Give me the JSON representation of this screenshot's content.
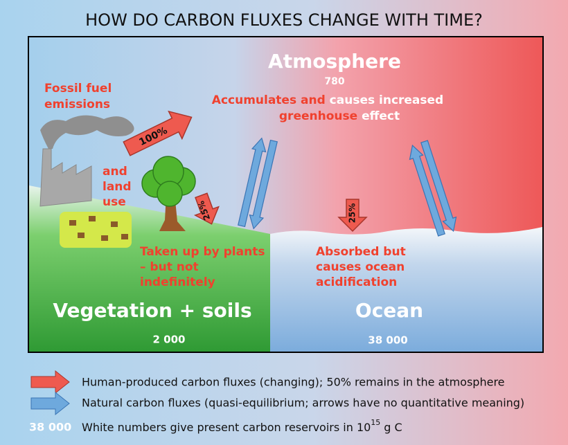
{
  "title": "HOW DO CARBON FLUXES CHANGE WITH TIME?",
  "atmosphere": {
    "name": "Atmosphere",
    "reservoir": "780",
    "note": [
      "Accumulates and",
      "causes increased",
      "greenhouse",
      "effect"
    ]
  },
  "fossil_fuel": {
    "lines": [
      "Fossil fuel",
      "emissions"
    ],
    "percent": "100%"
  },
  "land_use": {
    "lines": [
      "and",
      "land",
      "use"
    ]
  },
  "plants": {
    "percent": "25%",
    "lines": [
      "Taken up by plants",
      "– but not",
      "indefinitely"
    ]
  },
  "ocean_uptake": {
    "percent": "25%",
    "lines": [
      "Absorbed but",
      "causes ocean",
      "acidification"
    ]
  },
  "vegetation": {
    "name": "Vegetation + soils",
    "reservoir": "2 000"
  },
  "ocean": {
    "name": "Ocean",
    "reservoir": "38 000"
  },
  "legend": {
    "human": "Human-produced carbon fluxes (changing); 50% remains in the atmosphere",
    "natural": "Natural carbon fluxes (quasi-equilibrium; arrows have no quantitative meaning)",
    "reservoir_example": "38 000",
    "reservoir_text": "White numbers give present carbon reservoirs in 10",
    "reservoir_exponent": "15",
    "reservoir_unit": "g C"
  }
}
